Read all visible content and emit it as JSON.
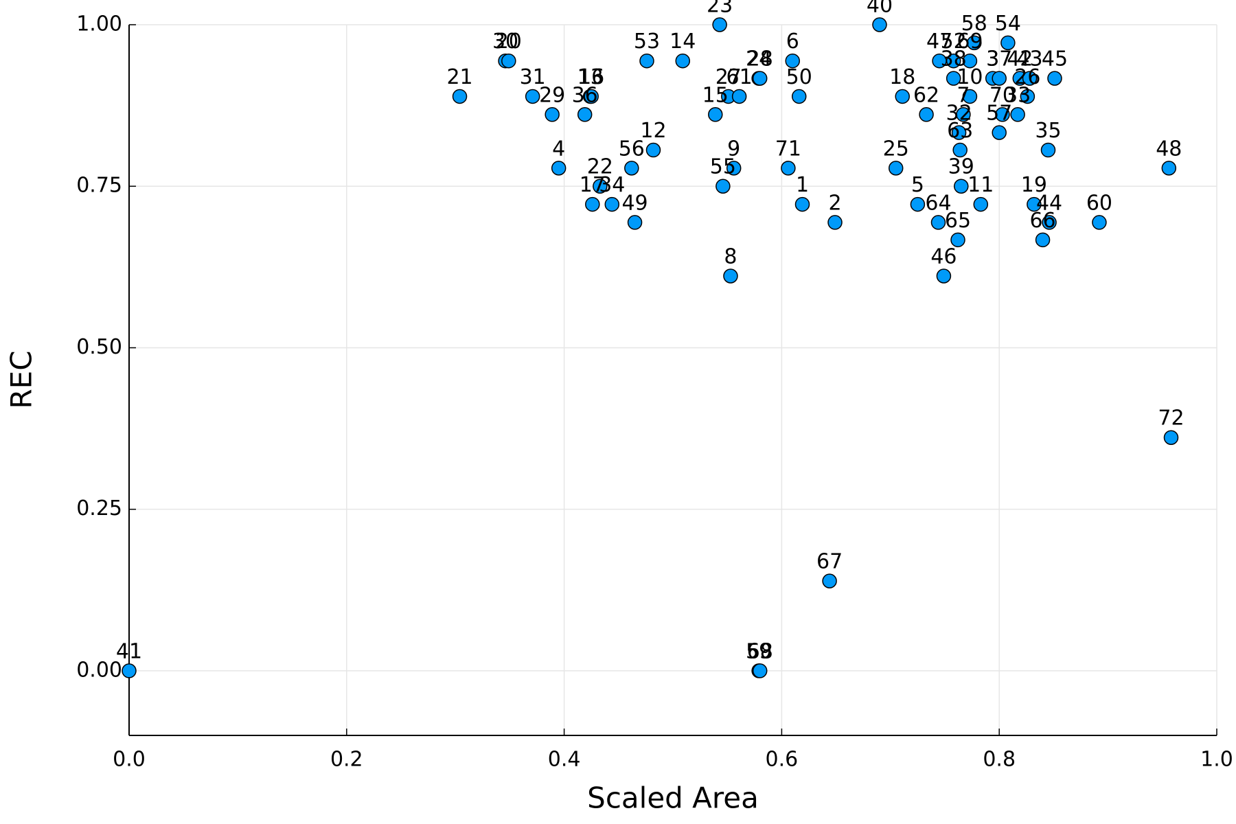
{
  "chart_data": {
    "type": "scatter",
    "x_label": "Scaled Area",
    "y_label": "REC",
    "color": "#009af9",
    "grid": true,
    "xlim": [
      0,
      1
    ],
    "ylim": [
      -0.1,
      1.0
    ],
    "xticks": [
      {
        "value": 0,
        "label": "0.0"
      },
      0.2,
      0.4,
      0.6,
      0.8,
      {
        "value": 1,
        "label": "1.0"
      }
    ],
    "yticks": [
      {
        "value": 0,
        "label": "0.00"
      },
      {
        "value": 0.25,
        "label": "0.25"
      },
      {
        "value": 0.5,
        "label": "0.50"
      },
      {
        "value": 0.75,
        "label": "0.75"
      },
      {
        "value": 1,
        "label": "1.00"
      }
    ],
    "labels": [
      "41",
      "23",
      "40",
      "30",
      "20",
      "53",
      "14",
      "6",
      "24",
      "28",
      "21",
      "31",
      "29",
      "13",
      "16",
      "36",
      "15",
      "27",
      "61",
      "50",
      "12",
      "4",
      "56",
      "9",
      "55",
      "71",
      "22",
      "17",
      "34",
      "49",
      "1",
      "2",
      "8",
      "67",
      "59",
      "68",
      "18",
      "62",
      "25",
      "5",
      "64",
      "46",
      "65",
      "47",
      "52",
      "38",
      "58",
      "54",
      "69",
      "10",
      "7",
      "32",
      "63",
      "39",
      "11",
      "3",
      "37",
      "42",
      "43",
      "45",
      "26",
      "33",
      "70",
      "57",
      "35",
      "48",
      "19",
      "44",
      "66",
      "60",
      "72"
    ],
    "x": [
      0,
      0.543,
      0.69,
      0.346,
      0.349,
      0.476,
      0.509,
      0.61,
      0.579,
      0.58,
      0.304,
      0.371,
      0.389,
      0.424,
      0.425,
      0.419,
      0.539,
      0.551,
      0.561,
      0.616,
      0.482,
      0.395,
      0.462,
      0.556,
      0.546,
      0.606,
      0.433,
      0.426,
      0.444,
      0.465,
      0.619,
      0.649,
      0.553,
      0.644,
      0.579,
      0.58,
      0.711,
      0.733,
      0.705,
      0.725,
      0.744,
      0.749,
      0.762,
      0.745,
      0.758,
      0.758,
      0.777,
      0.808,
      0.773,
      0.773,
      0.767,
      0.763,
      0.764,
      0.765,
      0.783,
      0.794,
      0.8,
      0.819,
      0.828,
      0.851,
      0.826,
      0.817,
      0.803,
      0.8,
      0.845,
      0.956,
      0.832,
      0.846,
      0.84,
      0.892,
      0.958
    ],
    "values": [
      0,
      1,
      1,
      0.944,
      0.944,
      0.944,
      0.944,
      0.944,
      0.917,
      0.917,
      0.889,
      0.889,
      0.861,
      0.889,
      0.889,
      0.861,
      0.861,
      0.889,
      0.889,
      0.889,
      0.806,
      0.778,
      0.778,
      0.778,
      0.75,
      0.778,
      0.75,
      0.722,
      0.722,
      0.694,
      0.722,
      0.694,
      0.611,
      0.139,
      0,
      0,
      0.889,
      0.861,
      0.778,
      0.722,
      0.694,
      0.611,
      0.667,
      0.944,
      0.944,
      0.917,
      0.972,
      0.972,
      0.944,
      0.889,
      0.861,
      0.833,
      0.806,
      0.75,
      0.722,
      0.917,
      0.917,
      0.917,
      0.917,
      0.917,
      0.889,
      0.861,
      0.861,
      0.833,
      0.806,
      0.778,
      0.722,
      0.694,
      0.667,
      0.694,
      0.361
    ]
  }
}
